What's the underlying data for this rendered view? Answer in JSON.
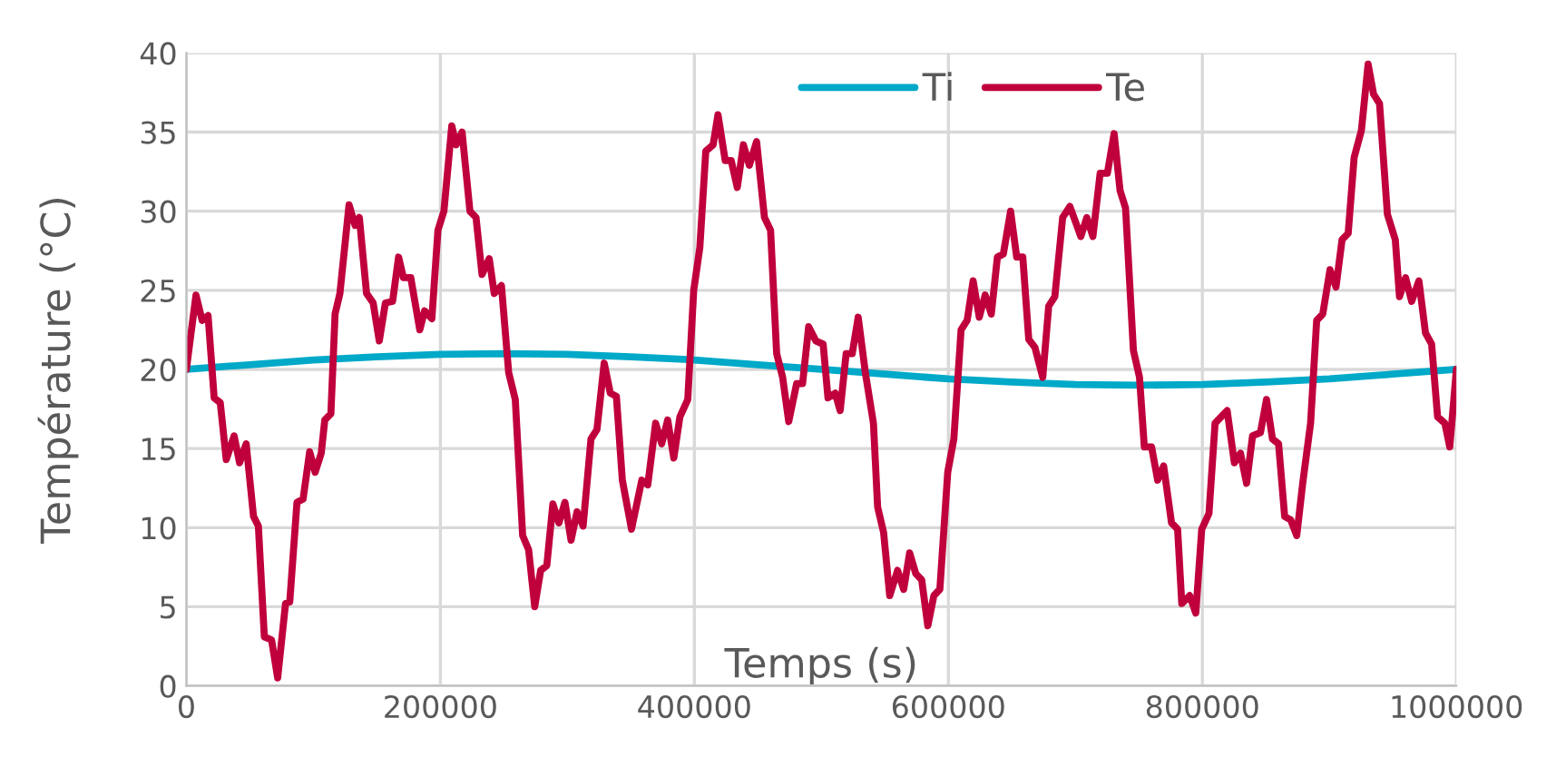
{
  "chart_data": {
    "type": "line",
    "xlabel": "Temps (s)",
    "ylabel": "Température (°C)",
    "xlim": [
      0,
      1000000
    ],
    "xticks": [
      0,
      200000,
      400000,
      600000,
      800000,
      1000000
    ],
    "ylim": [
      0,
      40
    ],
    "yticks": [
      0,
      5,
      10,
      15,
      20,
      25,
      30,
      35,
      40
    ],
    "grid": true,
    "legend": "top",
    "marker": "none",
    "line_style": "solid",
    "series": [
      {
        "name": "Ti",
        "color": "#00a9c8",
        "x": [
          0,
          50000,
          100000,
          150000,
          200000,
          250000,
          300000,
          350000,
          400000,
          450000,
          500000,
          550000,
          600000,
          650000,
          700000,
          750000,
          800000,
          850000,
          900000,
          950000,
          1000000
        ],
        "values": [
          20,
          20.3,
          20.6,
          20.8,
          20.95,
          21,
          20.95,
          20.8,
          20.6,
          20.3,
          20,
          19.7,
          19.4,
          19.2,
          19.05,
          19,
          19.05,
          19.2,
          19.4,
          19.7,
          20
        ]
      },
      {
        "name": "Te",
        "color": "#c0003c",
        "x": [
          0,
          7600,
          12400,
          17100,
          21900,
          26700,
          31400,
          37600,
          41900,
          47100,
          52900,
          56700,
          61400,
          67100,
          71900,
          78100,
          81400,
          87100,
          91900,
          97100,
          101400,
          106200,
          109000,
          113800,
          117100,
          120900,
          128100,
          132900,
          136200,
          141900,
          147100,
          151900,
          156700,
          162400,
          167100,
          170900,
          176700,
          183800,
          187600,
          193300,
          198100,
          202800,
          209000,
          212400,
          217100,
          223300,
          228100,
          232800,
          238500,
          242400,
          248100,
          253800,
          259000,
          264800,
          269500,
          274300,
          279000,
          283800,
          288600,
          293300,
          298100,
          302900,
          307600,
          312400,
          318600,
          323300,
          329000,
          333800,
          338600,
          343300,
          350500,
          358600,
          363300,
          369500,
          374300,
          379000,
          383800,
          388600,
          394800,
          399500,
          404300,
          409000,
          414800,
          418600,
          424300,
          429000,
          433800,
          438600,
          443300,
          449000,
          455200,
          460000,
          464800,
          469500,
          474300,
          480500,
          485200,
          490000,
          495700,
          501400,
          505200,
          510900,
          514800,
          519500,
          524300,
          529000,
          534800,
          541000,
          544300,
          549000,
          553800,
          560000,
          564800,
          569500,
          574300,
          579000,
          583800,
          588600,
          593300,
          599500,
          604300,
          610000,
          614800,
          619500,
          624300,
          629000,
          633800,
          638600,
          643300,
          649000,
          653800,
          658600,
          663300,
          668100,
          674300,
          679000,
          683800,
          690000,
          695700,
          704300,
          709000,
          713800,
          719500,
          725200,
          730500,
          735200,
          739500,
          745700,
          750500,
          754300,
          760000,
          764800,
          769500,
          775700,
          780500,
          783800,
          790000,
          794800,
          799500,
          805200,
          810000,
          814800,
          819500,
          825200,
          830000,
          834800,
          839500,
          845700,
          850500,
          855200,
          860000,
          864800,
          869500,
          874300,
          879000,
          885200,
          890000,
          894800,
          900500,
          905200,
          910000,
          914800,
          919500,
          925200,
          930500,
          934800,
          939500,
          945700,
          951900,
          955200,
          960000,
          964800,
          970500,
          975700,
          980500,
          985200,
          990900,
          994800,
          1000000
        ],
        "values": [
          20.0,
          24.7,
          23.1,
          23.4,
          18.2,
          17.9,
          14.3,
          15.8,
          14.1,
          15.3,
          10.7,
          10.1,
          3.1,
          2.9,
          0.5,
          5.2,
          5.3,
          11.6,
          11.8,
          14.8,
          13.5,
          14.7,
          16.8,
          17.2,
          23.5,
          24.8,
          30.4,
          29.1,
          29.6,
          24.8,
          24.2,
          21.8,
          24.2,
          24.3,
          27.1,
          25.8,
          25.8,
          22.5,
          23.7,
          23.2,
          28.8,
          30.0,
          35.4,
          34.2,
          35.0,
          30.0,
          29.6,
          26.0,
          27.0,
          24.8,
          25.3,
          19.8,
          18.1,
          9.5,
          8.6,
          5.0,
          7.3,
          7.6,
          11.5,
          10.3,
          11.6,
          9.2,
          11.0,
          10.1,
          15.6,
          16.2,
          20.4,
          18.5,
          18.3,
          13.0,
          9.9,
          13.0,
          12.7,
          16.6,
          15.3,
          16.8,
          14.4,
          17.0,
          18.1,
          25.0,
          27.7,
          33.8,
          34.2,
          36.1,
          33.2,
          33.2,
          31.5,
          34.2,
          32.9,
          34.4,
          29.6,
          28.8,
          21.0,
          19.5,
          16.7,
          19.1,
          19.1,
          22.7,
          21.8,
          21.6,
          18.2,
          18.5,
          17.4,
          21.0,
          21.0,
          23.3,
          19.7,
          16.6,
          11.3,
          9.7,
          5.7,
          7.3,
          6.1,
          8.4,
          7.1,
          6.7,
          3.8,
          5.7,
          6.1,
          13.5,
          15.6,
          22.5,
          23.1,
          25.6,
          23.3,
          24.7,
          23.5,
          27.1,
          27.3,
          30.0,
          27.1,
          27.1,
          21.9,
          21.4,
          19.5,
          24.0,
          24.6,
          29.6,
          30.3,
          28.4,
          29.6,
          28.4,
          32.4,
          32.4,
          34.9,
          31.3,
          30.2,
          21.2,
          19.5,
          15.1,
          15.1,
          13.0,
          13.9,
          10.3,
          9.9,
          5.2,
          5.7,
          4.6,
          9.9,
          10.9,
          16.6,
          17.0,
          17.4,
          14.1,
          14.7,
          12.8,
          15.8,
          16.0,
          18.1,
          15.6,
          15.3,
          10.7,
          10.5,
          9.5,
          12.8,
          16.6,
          23.1,
          23.5,
          26.3,
          25.2,
          28.2,
          28.6,
          33.4,
          35.1,
          39.3,
          37.4,
          36.8,
          29.8,
          28.2,
          24.6,
          25.8,
          24.3,
          25.6,
          22.3,
          21.6,
          17.0,
          16.6,
          15.1,
          20.0
        ]
      }
    ]
  }
}
